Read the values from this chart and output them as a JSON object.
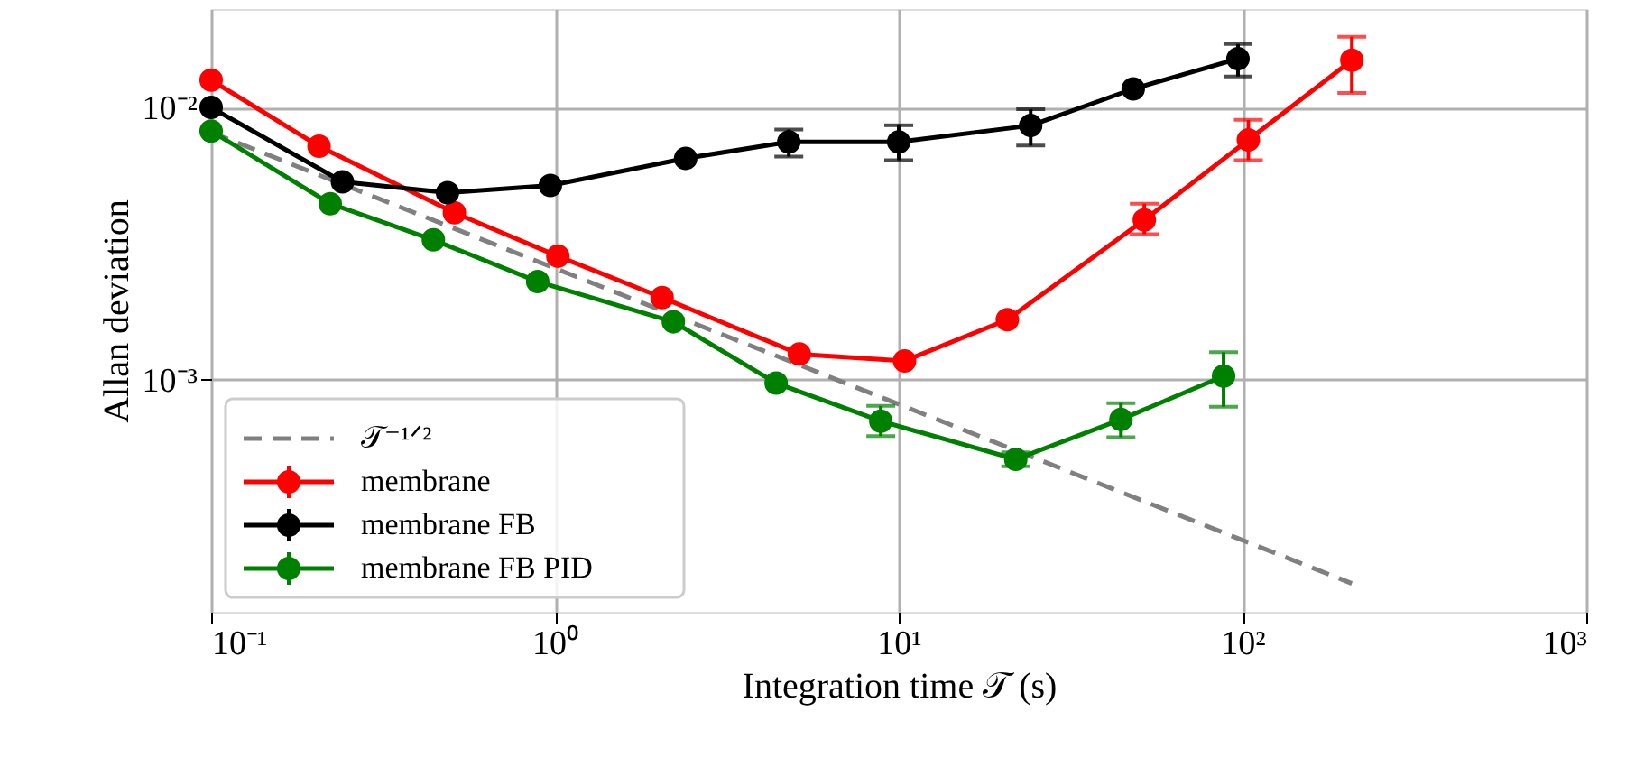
{
  "chart_data": {
    "type": "line",
    "xlabel": "Integration time 𝒯 (s)",
    "ylabel": "Allan deviation",
    "log": "xy",
    "grid": true,
    "legend": "bottom left",
    "marker": "circle",
    "xlim": [
      0.1,
      1000
    ],
    "xticks": [
      {
        "value": 0.1,
        "label": "10⁻¹"
      },
      {
        "value": 1,
        "label": "10⁰"
      },
      {
        "value": 10,
        "label": "10¹"
      },
      {
        "value": 100,
        "label": "10²"
      },
      {
        "value": 1000,
        "label": "10³"
      }
    ],
    "ylim": [
      0.00014,
      0.023
    ],
    "yticks": [
      {
        "value": 0.001,
        "label": "10⁻³"
      },
      {
        "value": 0.01,
        "label": "10⁻²"
      }
    ],
    "series": [
      {
        "name": "𝒯⁻¹ᐟ²",
        "color": "#808080",
        "type": "line",
        "marker": "none",
        "line_style": "dashed",
        "x": [
          0.1,
          208
        ],
        "values": [
          0.0081,
          0.000178
        ]
      },
      {
        "name": "membrane",
        "color": "#ff0000",
        "x": [
          0.1,
          0.206,
          0.51,
          1.02,
          2.05,
          5.14,
          10.4,
          20.7,
          51.8,
          104,
          208
        ],
        "values": [
          0.0126,
          0.0072,
          0.0041,
          0.00284,
          0.002,
          0.00124,
          0.00117,
          0.00166,
          0.00386,
          0.0076,
          0.0149
        ],
        "errors": [
          null,
          null,
          null,
          null,
          null,
          null,
          null,
          null,
          [
            0.00342,
            0.00443
          ],
          [
            0.0064,
            0.009
          ],
          [
            0.0113,
            0.0182
          ]
        ]
      },
      {
        "name": "membrane FB",
        "color": "#000000",
        "x": [
          0.1,
          0.241,
          0.487,
          0.97,
          2.4,
          4.79,
          10,
          24.2,
          48.1,
          97
        ],
        "values": [
          0.01,
          0.00533,
          0.00486,
          0.00517,
          0.0065,
          0.00747,
          0.00747,
          0.00858,
          0.0117,
          0.0151
        ],
        "errors": [
          null,
          null,
          null,
          null,
          null,
          [
            0.0066,
            0.0083
          ],
          [
            0.0064,
            0.0086
          ],
          [
            0.00724,
            0.00985
          ],
          null,
          [
            0.013,
            0.0171
          ]
        ]
      },
      {
        "name": "membrane FB PID",
        "color": "#008000",
        "x": [
          0.1,
          0.222,
          0.443,
          0.891,
          2.21,
          4.4,
          8.87,
          21.9,
          44.3,
          88.1
        ],
        "values": [
          0.00819,
          0.00443,
          0.00326,
          0.00229,
          0.00163,
          0.00097,
          0.000703,
          0.000509,
          0.000713,
          0.00103
        ],
        "errors": [
          null,
          null,
          null,
          null,
          null,
          null,
          [
            0.00062,
            0.0008
          ],
          [
            0.00048,
            0.00054
          ],
          [
            0.000614,
            0.000819
          ],
          [
            0.000794,
            0.00126
          ]
        ]
      }
    ]
  }
}
